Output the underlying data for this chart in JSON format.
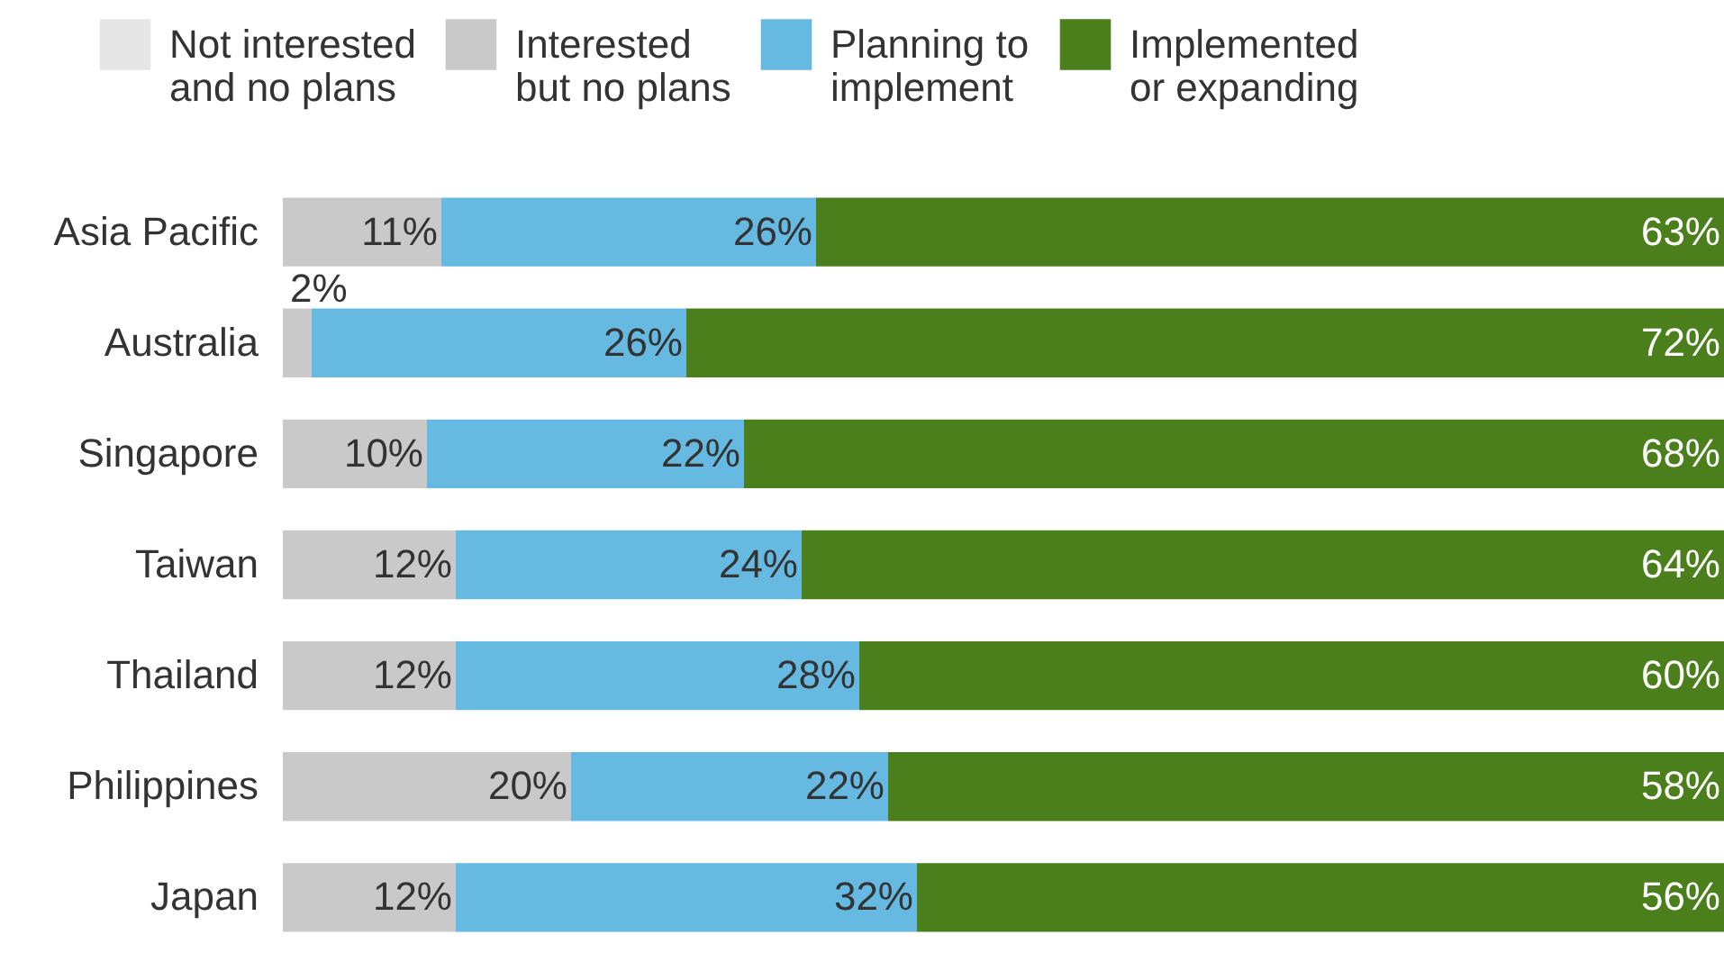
{
  "chart_data": {
    "type": "bar",
    "orientation": "horizontal",
    "stacked": true,
    "legend": "top",
    "grid": false,
    "categories": [
      "Asia Pacific",
      "Australia",
      "Singapore",
      "Taiwan",
      "Thailand",
      "Philippines",
      "Japan"
    ],
    "series": [
      {
        "name": "Not interested and no plans",
        "color": "#e6e6e6",
        "values": [
          0,
          0,
          0,
          0,
          0,
          0,
          0
        ],
        "value_labels": [
          null,
          null,
          null,
          null,
          null,
          null,
          null
        ]
      },
      {
        "name": "Interested but no plans",
        "color": "#c9c9c9",
        "values": [
          11,
          2,
          10,
          12,
          12,
          20,
          12
        ],
        "value_labels": [
          "11%",
          "2%",
          "10%",
          "12%",
          "12%",
          "20%",
          "12%"
        ]
      },
      {
        "name": "Planning to implement",
        "color": "#66bae2",
        "values": [
          26,
          26,
          22,
          24,
          28,
          22,
          32
        ],
        "value_labels": [
          "26%",
          "26%",
          "22%",
          "24%",
          "28%",
          "22%",
          "32%"
        ]
      },
      {
        "name": "Implemented or expanding",
        "color": "#4a7f1b",
        "values": [
          63,
          72,
          68,
          64,
          60,
          58,
          56
        ],
        "value_labels": [
          "63%",
          "72%",
          "68%",
          "64%",
          "60%",
          "58%",
          "56%"
        ]
      }
    ]
  }
}
